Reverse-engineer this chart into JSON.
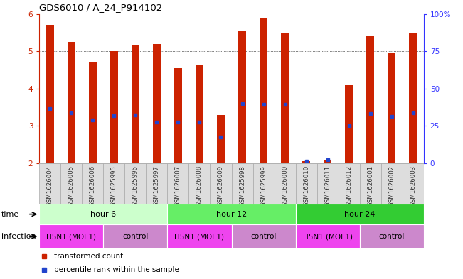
{
  "title": "GDS6010 / A_24_P914102",
  "samples": [
    "GSM1626004",
    "GSM1626005",
    "GSM1626006",
    "GSM1625995",
    "GSM1625996",
    "GSM1625997",
    "GSM1626007",
    "GSM1626008",
    "GSM1626009",
    "GSM1625998",
    "GSM1625999",
    "GSM1626000",
    "GSM1626010",
    "GSM1626011",
    "GSM1626012",
    "GSM1626001",
    "GSM1626002",
    "GSM1626003"
  ],
  "bar_values": [
    5.7,
    5.25,
    4.7,
    5.0,
    5.15,
    5.2,
    4.55,
    4.65,
    3.3,
    5.55,
    5.9,
    5.5,
    2.05,
    2.1,
    4.1,
    5.4,
    4.95,
    5.5
  ],
  "dot_values": [
    3.47,
    3.35,
    3.15,
    3.28,
    3.3,
    3.1,
    3.1,
    3.1,
    2.7,
    3.6,
    3.58,
    3.57,
    2.05,
    2.1,
    3.0,
    3.33,
    3.25,
    3.35
  ],
  "bar_color": "#cc2200",
  "dot_color": "#2244cc",
  "ymin": 2.0,
  "ymax": 6.0,
  "yticks_left": [
    2,
    3,
    4,
    5,
    6
  ],
  "right_yticks_pct": [
    0,
    25,
    50,
    75,
    100
  ],
  "right_yticklabels": [
    "0",
    "25",
    "50",
    "75",
    "100%"
  ],
  "time_groups": [
    {
      "label": "hour 6",
      "start": 0,
      "end": 6,
      "color": "#ccffcc"
    },
    {
      "label": "hour 12",
      "start": 6,
      "end": 12,
      "color": "#66ee66"
    },
    {
      "label": "hour 24",
      "start": 12,
      "end": 18,
      "color": "#33cc33"
    }
  ],
  "infection_groups": [
    {
      "label": "H5N1 (MOI 1)",
      "start": 0,
      "end": 3,
      "color": "#ee44ee"
    },
    {
      "label": "control",
      "start": 3,
      "end": 6,
      "color": "#cc88cc"
    },
    {
      "label": "H5N1 (MOI 1)",
      "start": 6,
      "end": 9,
      "color": "#ee44ee"
    },
    {
      "label": "control",
      "start": 9,
      "end": 12,
      "color": "#cc88cc"
    },
    {
      "label": "H5N1 (MOI 1)",
      "start": 12,
      "end": 15,
      "color": "#ee44ee"
    },
    {
      "label": "control",
      "start": 15,
      "end": 18,
      "color": "#cc88cc"
    }
  ],
  "legend_items": [
    {
      "label": "transformed count",
      "color": "#cc2200"
    },
    {
      "label": "percentile rank within the sample",
      "color": "#2244cc"
    }
  ],
  "bar_width": 0.35,
  "background_color": "#ffffff",
  "right_tick_color": "#3333ff",
  "left_tick_color": "#cc2200",
  "sample_cell_color": "#dddddd",
  "sample_cell_border": "#aaaaaa"
}
